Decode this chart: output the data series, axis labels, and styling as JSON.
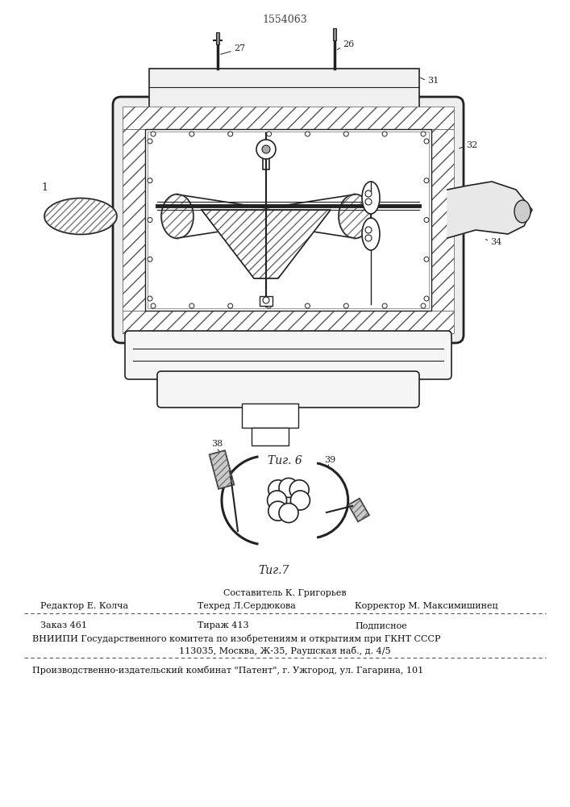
{
  "patent_number": "1554063",
  "fig6_caption": "Τиг. 6",
  "fig7_caption": "Τиг.7",
  "footer_line1_center": "Составитель К. Григорьев",
  "footer_line2_left": "Редактор Е. Колча",
  "footer_line2_center": "Техред Л.Сердюкова",
  "footer_line2_right": "Корректор М. Максимишинец",
  "footer_line3_left": "Заказ 461",
  "footer_line3_center": "Тираж 413",
  "footer_line3_right": "Подписное",
  "footer_line4": "ВНИИПИ Государственного комитета по изобретениям и открытиям при ГКНТ СССР",
  "footer_line5": "113035, Москва, Ж-35, Раушская наб., д. 4/5",
  "footer_line6": "Производственно-издательский комбинат \"Патент\", г. Ужгород, ул. Гагарина, 101",
  "bg_color": "#ffffff"
}
